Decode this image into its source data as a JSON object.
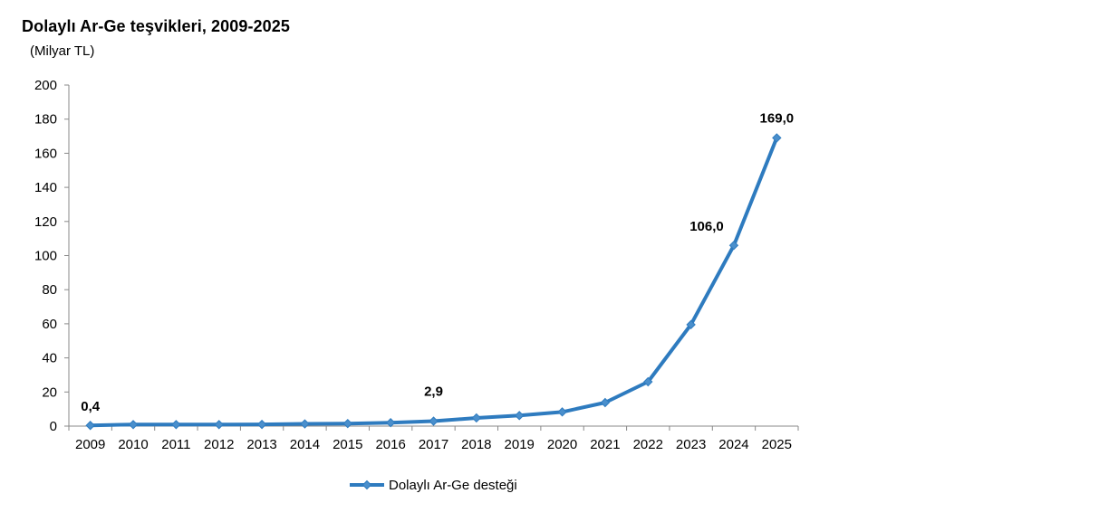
{
  "title": "Dolaylı Ar-Ge teşvikleri, 2009-2025",
  "unit_label": "(Milyar TL)",
  "chart_data": {
    "type": "line",
    "title": "Dolaylı Ar-Ge teşvikleri, 2009-2025",
    "ylabel": "(Milyar TL)",
    "xlabel": "",
    "categories": [
      "2009",
      "2010",
      "2011",
      "2012",
      "2013",
      "2014",
      "2015",
      "2016",
      "2017",
      "2018",
      "2019",
      "2020",
      "2021",
      "2022",
      "2023",
      "2024",
      "2025"
    ],
    "series": [
      {
        "name": "Dolaylı Ar-Ge desteği",
        "color": "#2E7BBF",
        "values": [
          0.4,
          0.9,
          0.9,
          0.9,
          1.0,
          1.3,
          1.5,
          2.0,
          2.9,
          4.8,
          6.2,
          8.3,
          13.8,
          26.0,
          59.5,
          106.0,
          169.0
        ]
      }
    ],
    "ylim": [
      0,
      200
    ],
    "yticks": [
      0,
      20,
      40,
      60,
      80,
      100,
      120,
      140,
      160,
      180,
      200
    ],
    "ytick_labels": [
      "0",
      "20",
      "40",
      "60",
      "80",
      "100",
      "120",
      "140",
      "160",
      "180",
      "200"
    ],
    "data_labels": [
      {
        "category": "2009",
        "text": "0,4"
      },
      {
        "category": "2017",
        "text": "2,9"
      },
      {
        "category": "2024",
        "text": "106,0"
      },
      {
        "category": "2025",
        "text": "169,0"
      }
    ],
    "grid": false,
    "legend_position": "bottom"
  }
}
